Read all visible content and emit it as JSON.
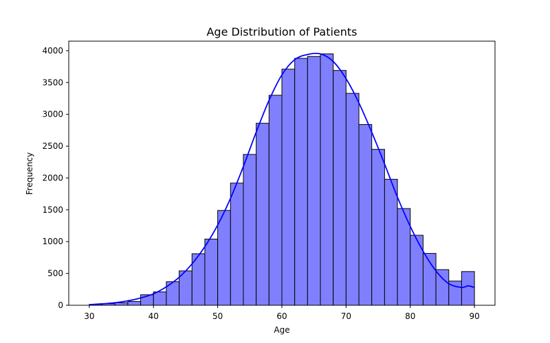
{
  "chart_data": {
    "type": "bar",
    "title": "Age Distribution of Patients",
    "xlabel": "Age",
    "ylabel": "Frequency",
    "xlim": [
      26.8,
      93.2
    ],
    "ylim": [
      0,
      4150
    ],
    "x_ticks": [
      30,
      40,
      50,
      60,
      70,
      80,
      90
    ],
    "x_tick_labels": [
      "30",
      "40",
      "50",
      "60",
      "70",
      "80",
      "90"
    ],
    "y_ticks": [
      0,
      500,
      1000,
      1500,
      2000,
      2500,
      3000,
      3500,
      4000
    ],
    "y_tick_labels": [
      "0",
      "500",
      "1000",
      "1500",
      "2000",
      "2500",
      "3000",
      "3500",
      "4000"
    ],
    "bin_start": 30,
    "bin_width": 2,
    "bins": [
      {
        "x0": 30,
        "x1": 32,
        "count": 15
      },
      {
        "x0": 32,
        "x1": 34,
        "count": 25
      },
      {
        "x0": 34,
        "x1": 36,
        "count": 40
      },
      {
        "x0": 36,
        "x1": 38,
        "count": 60
      },
      {
        "x0": 38,
        "x1": 40,
        "count": 165
      },
      {
        "x0": 40,
        "x1": 42,
        "count": 210
      },
      {
        "x0": 42,
        "x1": 44,
        "count": 370
      },
      {
        "x0": 44,
        "x1": 46,
        "count": 540
      },
      {
        "x0": 46,
        "x1": 48,
        "count": 810
      },
      {
        "x0": 48,
        "x1": 50,
        "count": 1040
      },
      {
        "x0": 50,
        "x1": 52,
        "count": 1490
      },
      {
        "x0": 52,
        "x1": 54,
        "count": 1920
      },
      {
        "x0": 54,
        "x1": 56,
        "count": 2370
      },
      {
        "x0": 56,
        "x1": 58,
        "count": 2860
      },
      {
        "x0": 58,
        "x1": 60,
        "count": 3300
      },
      {
        "x0": 60,
        "x1": 62,
        "count": 3710
      },
      {
        "x0": 62,
        "x1": 64,
        "count": 3880
      },
      {
        "x0": 64,
        "x1": 66,
        "count": 3910
      },
      {
        "x0": 66,
        "x1": 68,
        "count": 3950
      },
      {
        "x0": 68,
        "x1": 70,
        "count": 3690
      },
      {
        "x0": 70,
        "x1": 72,
        "count": 3330
      },
      {
        "x0": 72,
        "x1": 74,
        "count": 2840
      },
      {
        "x0": 74,
        "x1": 76,
        "count": 2450
      },
      {
        "x0": 76,
        "x1": 78,
        "count": 1980
      },
      {
        "x0": 78,
        "x1": 80,
        "count": 1520
      },
      {
        "x0": 80,
        "x1": 82,
        "count": 1100
      },
      {
        "x0": 82,
        "x1": 84,
        "count": 815
      },
      {
        "x0": 84,
        "x1": 86,
        "count": 560
      },
      {
        "x0": 86,
        "x1": 88,
        "count": 380
      },
      {
        "x0": 88,
        "x1": 90,
        "count": 530
      }
    ],
    "kde": {
      "x": [
        30,
        32,
        34,
        36,
        38,
        40,
        42,
        44,
        46,
        48,
        50,
        52,
        54,
        56,
        58,
        60,
        62,
        64,
        66,
        68,
        70,
        72,
        74,
        76,
        78,
        80,
        82,
        84,
        86,
        88,
        89,
        90
      ],
      "y": [
        10,
        22,
        40,
        70,
        115,
        180,
        290,
        440,
        650,
        920,
        1260,
        1680,
        2180,
        2720,
        3220,
        3620,
        3860,
        3940,
        3950,
        3830,
        3560,
        3180,
        2720,
        2220,
        1700,
        1240,
        850,
        540,
        340,
        280,
        305,
        280
      ]
    },
    "colors": {
      "bar_fill": "#8080ff",
      "bar_edge": "#000000",
      "kde_line": "#0000ff"
    },
    "grid": false,
    "legend": "none"
  }
}
